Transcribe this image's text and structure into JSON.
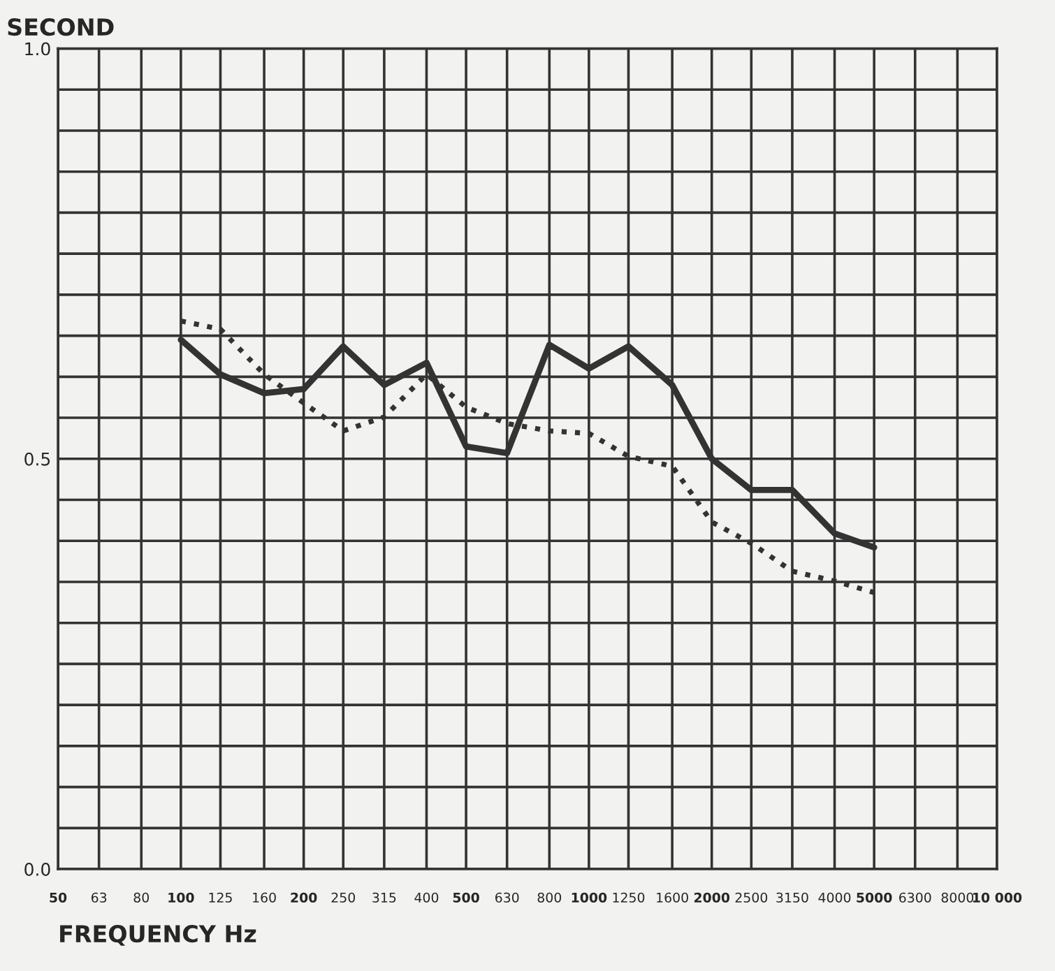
{
  "chart_data": {
    "type": "line",
    "ylabel": "SECOND",
    "xlabel": "FREQUENCY Hz",
    "log": "x",
    "xlim": [
      50,
      10000
    ],
    "xticks": [
      50,
      63,
      80,
      100,
      125,
      160,
      200,
      250,
      315,
      400,
      500,
      630,
      800,
      1000,
      1250,
      1600,
      2000,
      2500,
      3150,
      4000,
      5000,
      6300,
      8000,
      {
        "value": 10000,
        "label": "10 000"
      }
    ],
    "ylim": [
      0,
      1
    ],
    "yticks": [
      {
        "value": 0,
        "label": "0.0"
      },
      {
        "value": 0.05,
        "label": null
      },
      {
        "value": 0.1,
        "label": null
      },
      {
        "value": 0.15,
        "label": null
      },
      {
        "value": 0.2,
        "label": null
      },
      {
        "value": 0.25,
        "label": null
      },
      {
        "value": 0.3,
        "label": null
      },
      {
        "value": 0.35,
        "label": null
      },
      {
        "value": 0.4,
        "label": null
      },
      {
        "value": 0.45,
        "label": null
      },
      {
        "value": 0.5,
        "label": "0.5"
      },
      {
        "value": 0.55,
        "label": null
      },
      {
        "value": 0.6,
        "label": null
      },
      {
        "value": 0.65,
        "label": null
      },
      {
        "value": 0.7,
        "label": null
      },
      {
        "value": 0.75,
        "label": null
      },
      {
        "value": 0.8,
        "label": null
      },
      {
        "value": 0.85,
        "label": null
      },
      {
        "value": 0.9,
        "label": null
      },
      {
        "value": 0.95,
        "label": null
      },
      {
        "value": 1,
        "label": "1.0"
      }
    ],
    "grid": true,
    "legend": false,
    "series": [
      {
        "color": "#333333",
        "line_style": "solid",
        "x": [
          100,
          125,
          160,
          200,
          250,
          315,
          400,
          500,
          630,
          800,
          1000,
          1250,
          1600,
          2000,
          2500,
          3150,
          4000,
          5000
        ],
        "values": [
          0.645,
          0.603,
          0.58,
          0.585,
          0.637,
          0.59,
          0.617,
          0.515,
          0.507,
          0.639,
          0.61,
          0.637,
          0.59,
          0.5,
          0.462,
          0.462,
          0.409,
          0.392
        ]
      },
      {
        "color": "#333333",
        "line_style": "dotted",
        "x": [
          100,
          125,
          160,
          200,
          250,
          315,
          400,
          500,
          630,
          800,
          1000,
          1250,
          1600,
          2000,
          2500,
          3150,
          4000,
          5000
        ],
        "values": [
          0.668,
          0.658,
          0.603,
          0.568,
          0.534,
          0.551,
          0.603,
          0.563,
          0.543,
          0.534,
          0.531,
          0.503,
          0.491,
          0.423,
          0.397,
          0.363,
          0.351,
          0.337
        ]
      }
    ]
  }
}
